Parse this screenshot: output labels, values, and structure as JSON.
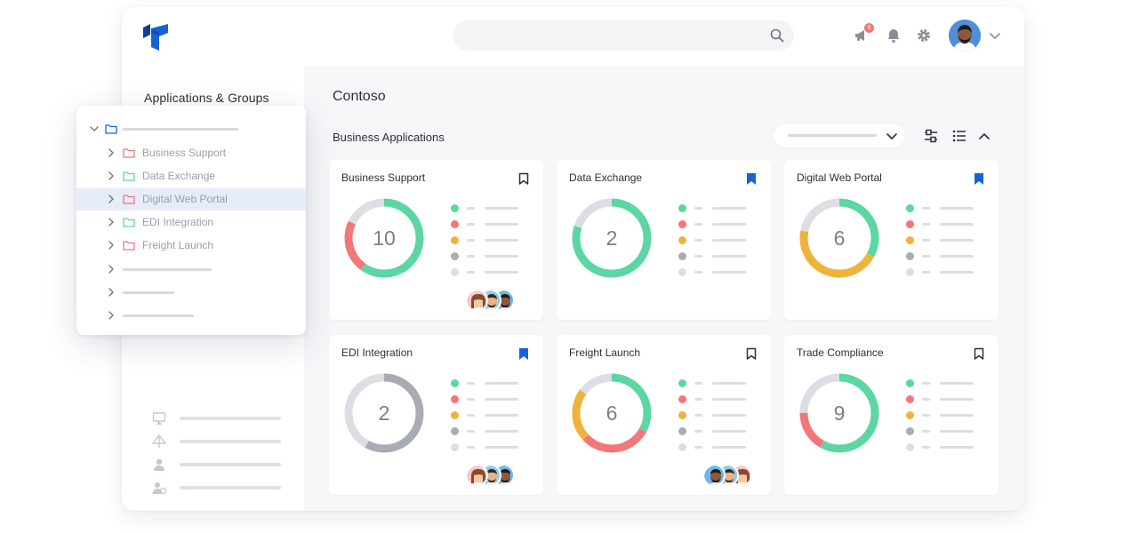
{
  "colors": {
    "brand": "#1763d6",
    "green": "#5cd6a3",
    "red": "#f2767a",
    "yellow": "#efb33b",
    "gray": "#a9acb3",
    "light": "#dcdee3",
    "bookmark_active": "#1763d6"
  },
  "header": {
    "logo_icon": "brand-logo",
    "search_icon": "search-icon",
    "notification_count": "5",
    "icons": [
      "megaphone-icon",
      "bell-icon",
      "gear-icon",
      "avatar",
      "chevron-down-icon"
    ]
  },
  "sidebar": {
    "title": "Applications & Groups",
    "bottom_icons": [
      "monitor-icon",
      "network-icon",
      "user-icon",
      "user-group-icon"
    ]
  },
  "tree": {
    "items": [
      {
        "label": "Business Support",
        "folder": "red"
      },
      {
        "label": "Data Exchange",
        "folder": "green"
      },
      {
        "label": "Digital Web Portal",
        "folder": "red",
        "selected": true
      },
      {
        "label": "EDI Integration",
        "folder": "green"
      },
      {
        "label": "Freight Launch",
        "folder": "red"
      }
    ]
  },
  "main": {
    "title": "Contoso",
    "section_title": "Business Applications"
  },
  "cards": [
    {
      "title": "Business Support",
      "value": "10",
      "bookmarked": false,
      "segments": [
        {
          "color": "green",
          "fraction": 0.6
        },
        {
          "color": "red",
          "fraction": 0.22
        },
        {
          "color": "light",
          "fraction": 0.18
        }
      ],
      "avatars": [
        "woman",
        "man",
        "man-dark"
      ]
    },
    {
      "title": "Data Exchange",
      "value": "2",
      "bookmarked": true,
      "segments": [
        {
          "color": "green",
          "fraction": 0.8
        },
        {
          "color": "light",
          "fraction": 0.2
        }
      ],
      "avatars": []
    },
    {
      "title": "Digital Web Portal",
      "value": "6",
      "bookmarked": true,
      "segments": [
        {
          "color": "green",
          "fraction": 0.33
        },
        {
          "color": "yellow",
          "fraction": 0.45
        },
        {
          "color": "light",
          "fraction": 0.22
        }
      ],
      "avatars": []
    },
    {
      "title": "EDI Integration",
      "value": "2",
      "bookmarked": true,
      "segments": [
        {
          "color": "gray",
          "fraction": 0.58
        },
        {
          "color": "light",
          "fraction": 0.42
        }
      ],
      "avatars": [
        "woman",
        "man",
        "man-dark"
      ]
    },
    {
      "title": "Freight Launch",
      "value": "6",
      "bookmarked": false,
      "segments": [
        {
          "color": "green",
          "fraction": 0.33
        },
        {
          "color": "red",
          "fraction": 0.3
        },
        {
          "color": "yellow",
          "fraction": 0.22
        },
        {
          "color": "light",
          "fraction": 0.15
        }
      ],
      "avatars": [
        "man-dark",
        "man",
        "woman"
      ]
    },
    {
      "title": "Trade Compliance",
      "value": "9",
      "bookmarked": false,
      "segments": [
        {
          "color": "green",
          "fraction": 0.58
        },
        {
          "color": "red",
          "fraction": 0.17
        },
        {
          "color": "light",
          "fraction": 0.25
        }
      ],
      "avatars": []
    }
  ],
  "legend_colors": [
    "green",
    "red",
    "yellow",
    "gray",
    "light"
  ]
}
